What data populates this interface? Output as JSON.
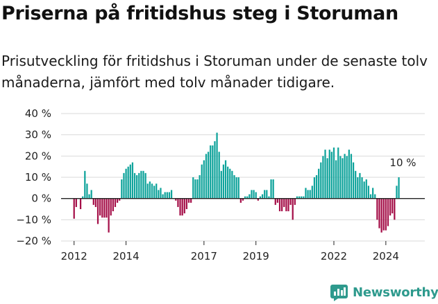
{
  "header": {
    "title": "Priserna på fritidshus steg i Storuman",
    "subtitle": "Prisutveckling för fritidshus i Storuman under de senaste tolv månaderna, jämfört med tolv månader tidigare."
  },
  "brand": {
    "name": "Newsworthy",
    "icon": "newsworthy-logo-icon"
  },
  "colors": {
    "positive": "#0fa39b",
    "negative": "#a51049",
    "grid": "#d9d9d9",
    "zero": "#222222",
    "text": "#222222"
  },
  "chart_data": {
    "type": "bar",
    "title": "Priserna på fritidshus steg i Storuman",
    "ylim": [
      -20,
      40
    ],
    "yticks": [
      -20,
      -10,
      0,
      10,
      20,
      30,
      40
    ],
    "ytick_labels": [
      "−20 %",
      "−10 %",
      "0 %",
      "10 %",
      "20 %",
      "30 %",
      "40 %"
    ],
    "xlim": [
      2011.5,
      2025.5
    ],
    "xticks": [
      2012,
      2014,
      2017,
      2019,
      2022,
      2024
    ],
    "xtick_labels": [
      "2012",
      "2014",
      "2017",
      "2019",
      "2022",
      "2024"
    ],
    "grid": true,
    "start": "2012-01",
    "frequency": "monthly",
    "values": [
      -9.5,
      -4,
      0,
      -5,
      1,
      13,
      7,
      2,
      4,
      -3,
      -4,
      -12,
      -8,
      -9,
      -9,
      -9,
      -16,
      -8,
      -6,
      -4,
      -2,
      -1,
      9,
      12,
      14,
      15,
      16,
      17,
      12,
      11,
      12,
      13,
      13,
      12,
      7,
      8,
      7,
      6,
      7,
      4,
      5,
      2,
      3,
      3,
      3,
      4,
      0,
      -1,
      -4,
      -8,
      -8,
      -7,
      -5,
      -2,
      -2,
      10,
      9,
      9,
      11,
      16,
      18,
      21,
      22,
      25,
      25,
      27,
      31,
      22,
      13,
      16,
      18,
      15,
      14,
      13,
      11,
      10,
      10,
      -2,
      -1,
      1,
      1,
      2,
      4,
      4,
      3,
      -1,
      1,
      2,
      4,
      4,
      1,
      9,
      9,
      -3,
      -2,
      -6,
      -6,
      -4,
      -6,
      -6,
      -3,
      -10,
      -3,
      1,
      1,
      1,
      1,
      5,
      4,
      4,
      6,
      10,
      11,
      14,
      17,
      20,
      23,
      19,
      23,
      22,
      24,
      18,
      24,
      20,
      19,
      21,
      20,
      23,
      21,
      17,
      13,
      10,
      12,
      10,
      8,
      9,
      6,
      2,
      5,
      2,
      -10,
      -14,
      -16,
      -15,
      -15,
      -13,
      -8,
      -7,
      -10,
      6,
      10
    ],
    "annotation": {
      "text": "10 %",
      "month": "2025-03"
    }
  }
}
